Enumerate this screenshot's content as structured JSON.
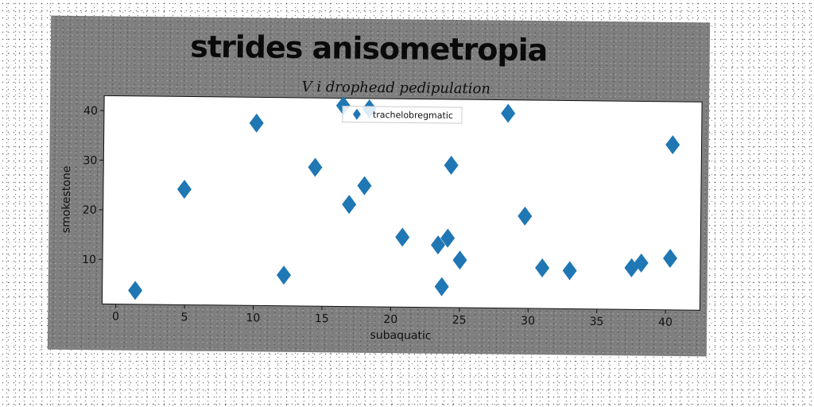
{
  "chart_data": {
    "type": "scatter",
    "title": "strides anisometropia",
    "subtitle": "V i drophead pedipulation",
    "xlabel": "subaquatic",
    "ylabel": "smokestone",
    "xlim": [
      -1,
      42.5
    ],
    "ylim": [
      1,
      43
    ],
    "xticks": [
      0,
      5,
      10,
      15,
      20,
      25,
      30,
      35,
      40
    ],
    "yticks": [
      10,
      20,
      30,
      40
    ],
    "grid": false,
    "legend_position": "top-center",
    "series": [
      {
        "name": "trachelobregmatic",
        "color": "#1f77b4",
        "marker": "diamond",
        "points": [
          [
            1.4,
            3.8
          ],
          [
            4.9,
            24.3
          ],
          [
            10.1,
            37.8
          ],
          [
            12.2,
            7.2
          ],
          [
            14.4,
            29.0
          ],
          [
            16.4,
            41.5
          ],
          [
            16.9,
            21.6
          ],
          [
            18.0,
            25.4
          ],
          [
            18.3,
            40.9
          ],
          [
            20.8,
            15.1
          ],
          [
            23.4,
            13.6
          ],
          [
            23.7,
            5.2
          ],
          [
            24.1,
            15.0
          ],
          [
            24.3,
            29.7
          ],
          [
            25.0,
            10.6
          ],
          [
            28.4,
            40.3
          ],
          [
            29.7,
            19.6
          ],
          [
            31.0,
            9.2
          ],
          [
            33.0,
            8.7
          ],
          [
            37.5,
            9.4
          ],
          [
            38.2,
            10.4
          ],
          [
            40.3,
            11.4
          ],
          [
            40.4,
            34.3
          ]
        ]
      }
    ]
  }
}
